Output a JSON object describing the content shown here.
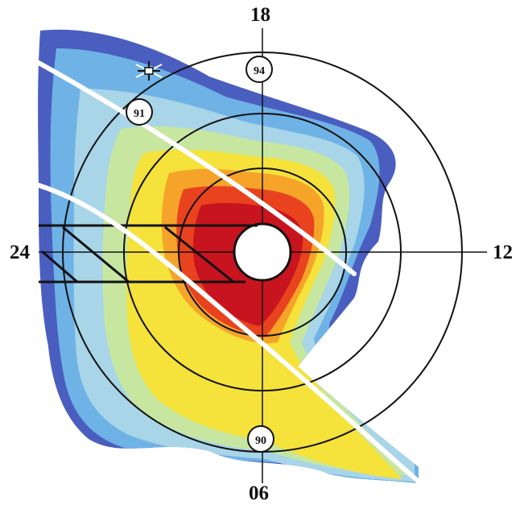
{
  "axis_labels": {
    "top": "18",
    "right": "12",
    "bottom": "06",
    "left": "24"
  },
  "markers": [
    {
      "id": "marker-94",
      "label": "94"
    },
    {
      "id": "marker-91",
      "label": "91"
    },
    {
      "id": "marker-90",
      "label": "90"
    }
  ],
  "palette": {
    "outer": "#4a5ec0",
    "light_blue": "#6fb2e6",
    "pale_blue": "#a8d5e8",
    "green": "#c7e6a0",
    "yellow": "#f5e23a",
    "orange": "#f6a32a",
    "red": "#e8421f",
    "dark_red": "#c8141e",
    "lines": "#111111",
    "tracks": "#ffffff"
  },
  "icons": {
    "satellite": "satellite-icon"
  }
}
